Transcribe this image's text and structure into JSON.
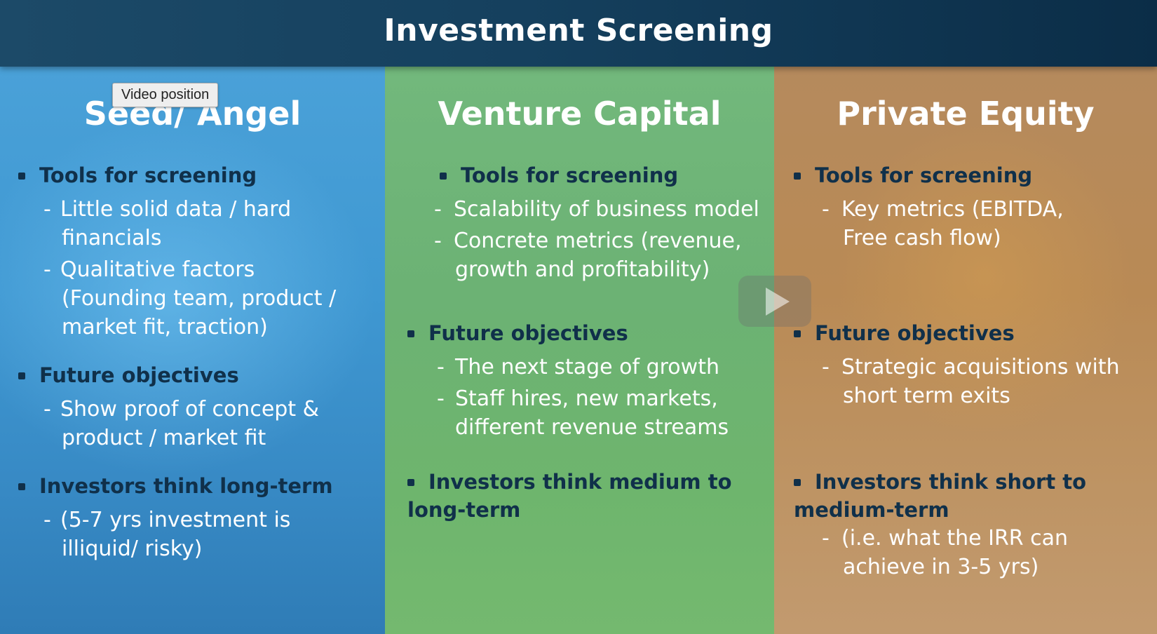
{
  "title": "Investment Screening",
  "tooltip": "Video position",
  "columns": [
    {
      "heading": "Seed/ Angel",
      "sections": [
        {
          "heading": "Tools for screening",
          "items": [
            "Little solid data / hard",
            "financials",
            "Qualitative factors",
            "(Founding team, product /",
            "market fit, traction)"
          ]
        },
        {
          "heading": "Future objectives",
          "items": [
            "Show proof of concept &",
            "product / market fit"
          ]
        },
        {
          "heading": "Investors think long-term",
          "items": [
            "(5-7 yrs investment is",
            "illiquid/ risky)"
          ]
        }
      ]
    },
    {
      "heading": "Venture Capital",
      "sections": [
        {
          "heading": "Tools for screening",
          "items": [
            "Scalability of business model",
            "Concrete metrics (revenue,",
            "growth and profitability)"
          ]
        },
        {
          "heading": "Future objectives",
          "items": [
            "The next stage of growth",
            "Staff hires, new markets,",
            "different revenue streams"
          ]
        },
        {
          "heading": "Investors think medium to",
          "heading2": "long-term",
          "items": []
        }
      ]
    },
    {
      "heading": "Private Equity",
      "sections": [
        {
          "heading": "Tools for screening",
          "items": [
            "Key metrics (EBITDA,",
            "Free cash flow)"
          ]
        },
        {
          "heading": "Future objectives",
          "items": [
            "Strategic acquisitions with",
            "short term exits"
          ]
        },
        {
          "heading": "Investors think short to",
          "heading2": "medium-term",
          "items": [
            "(i.e. what the IRR can",
            "achieve in 3-5 yrs)"
          ]
        }
      ]
    }
  ]
}
